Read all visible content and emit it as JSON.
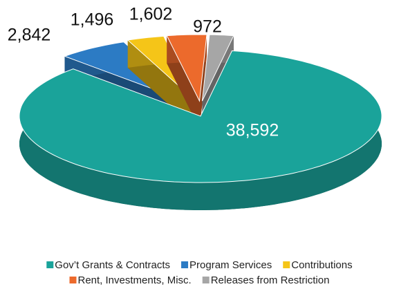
{
  "chart_data": {
    "type": "pie3d",
    "categories": [
      "Gov’t Grants & Contracts",
      "Program Services",
      "Contributions",
      "Rent, Investments, Misc.",
      "Releases from Restriction"
    ],
    "values": [
      38592,
      2842,
      1496,
      1602,
      972
    ],
    "value_labels": [
      "38,592",
      "2,842",
      "1,496",
      "1,602",
      "972"
    ],
    "colors": [
      "#1aa39a",
      "#2c7bc4",
      "#f5c518",
      "#ec6a2c",
      "#a6a6a6"
    ]
  }
}
